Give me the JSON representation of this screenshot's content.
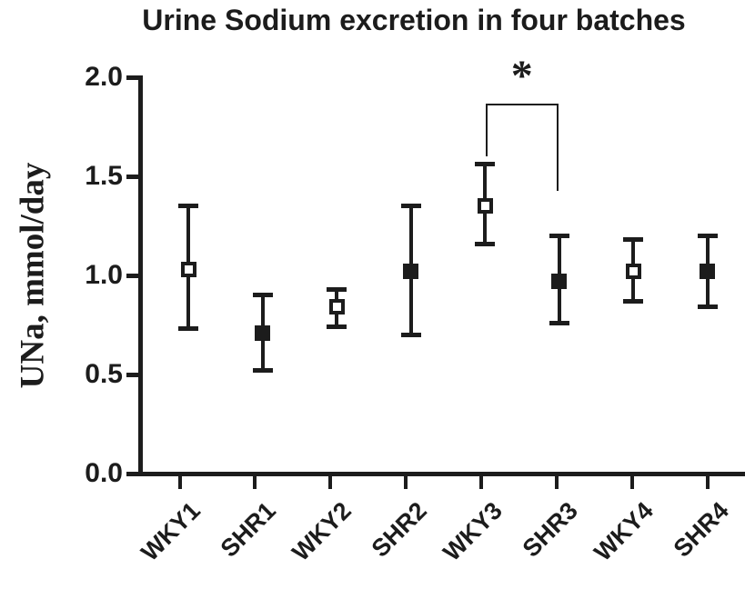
{
  "figure": {
    "title": "Urine Sodium excretion in four batches",
    "y_axis_label": "UNa, mmol/day"
  },
  "colors": {
    "ink": "#1c1c1c",
    "background": "#ffffff"
  },
  "chart_data": {
    "type": "scatter",
    "title": "Urine Sodium excretion in four batches",
    "xlabel": "",
    "ylabel": "UNa, mmol/day",
    "ylim": [
      0.0,
      2.0
    ],
    "ytick_labels": [
      "0.0",
      "0.5",
      "1.0",
      "1.5",
      "2.0"
    ],
    "grid": false,
    "legend": "none",
    "categories": [
      "WKY1",
      "SHR1",
      "WKY2",
      "SHR2",
      "WKY3",
      "SHR3",
      "WKY4",
      "SHR4"
    ],
    "series": [
      {
        "name": "mean with error bars",
        "points": [
          {
            "category": "WKY1",
            "mean": 1.03,
            "lower": 0.73,
            "upper": 1.35,
            "marker": "open-square"
          },
          {
            "category": "SHR1",
            "mean": 0.71,
            "lower": 0.52,
            "upper": 0.9,
            "marker": "filled-square"
          },
          {
            "category": "WKY2",
            "mean": 0.84,
            "lower": 0.74,
            "upper": 0.93,
            "marker": "open-square"
          },
          {
            "category": "SHR2",
            "mean": 1.02,
            "lower": 0.7,
            "upper": 1.35,
            "marker": "filled-square"
          },
          {
            "category": "WKY3",
            "mean": 1.35,
            "lower": 1.16,
            "upper": 1.56,
            "marker": "open-square"
          },
          {
            "category": "SHR3",
            "mean": 0.97,
            "lower": 0.76,
            "upper": 1.2,
            "marker": "filled-square"
          },
          {
            "category": "WKY4",
            "mean": 1.02,
            "lower": 0.87,
            "upper": 1.18,
            "marker": "open-square"
          },
          {
            "category": "SHR4",
            "mean": 1.02,
            "lower": 0.84,
            "upper": 1.2,
            "marker": "filled-square"
          }
        ]
      }
    ],
    "annotations": [
      {
        "type": "significance-bracket",
        "between": [
          "WKY3",
          "SHR3"
        ],
        "label": "*"
      }
    ]
  }
}
